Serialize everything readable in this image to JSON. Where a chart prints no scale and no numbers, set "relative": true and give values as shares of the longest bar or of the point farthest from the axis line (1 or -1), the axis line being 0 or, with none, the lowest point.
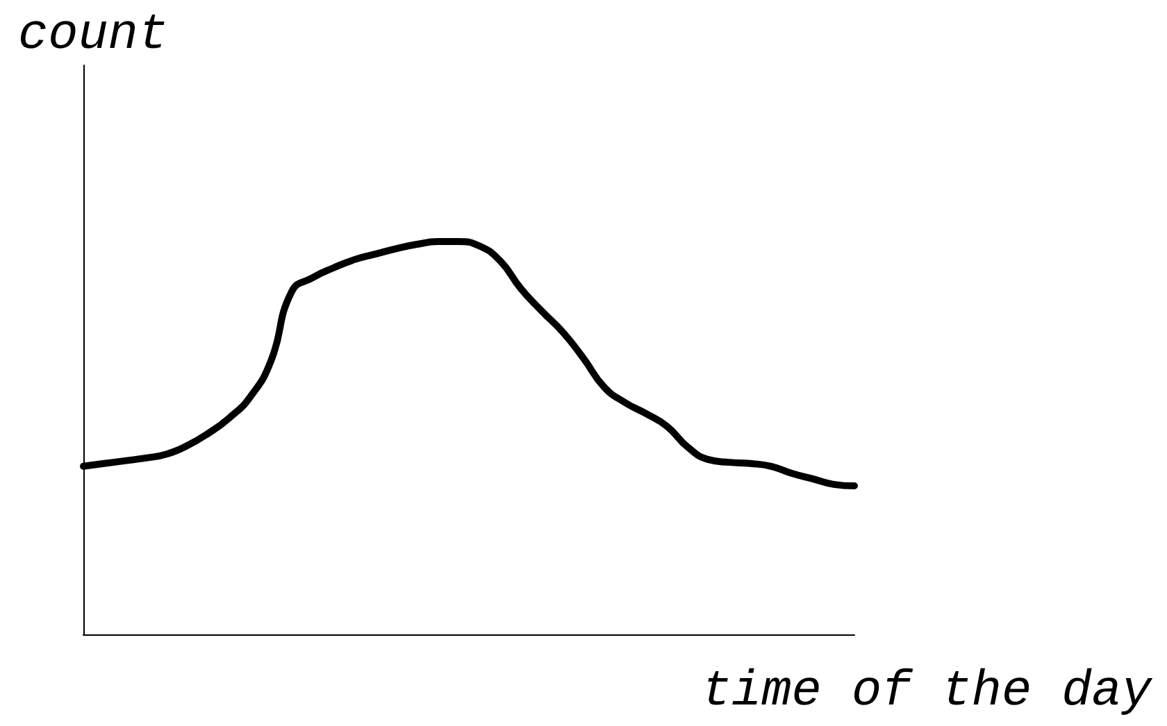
{
  "chart_data": {
    "type": "line",
    "relative": true,
    "ylabel": "count",
    "xlabel": "time of the day",
    "color": "#000000",
    "marker": "none",
    "line_style": "solid",
    "categories": [
      null,
      null,
      null,
      null,
      null,
      null,
      null,
      null,
      null,
      null,
      null,
      null,
      null,
      null,
      null,
      null,
      null,
      null,
      null,
      null,
      null,
      null,
      null,
      null,
      null,
      null,
      null,
      null,
      null,
      null,
      null,
      null,
      null,
      null,
      null,
      null,
      null,
      null
    ],
    "values": [
      0.428,
      0.435,
      0.442,
      0.449,
      0.459,
      0.481,
      0.512,
      0.551,
      0.604,
      0.696,
      0.873,
      0.908,
      0.933,
      0.954,
      0.968,
      0.982,
      0.993,
      1,
      1,
      0.989,
      0.951,
      0.88,
      0.823,
      0.77,
      0.703,
      0.629,
      0.59,
      0.562,
      0.53,
      0.477,
      0.445,
      0.438,
      0.435,
      0.428,
      0.41,
      0.396,
      0.382,
      0.378
    ]
  }
}
